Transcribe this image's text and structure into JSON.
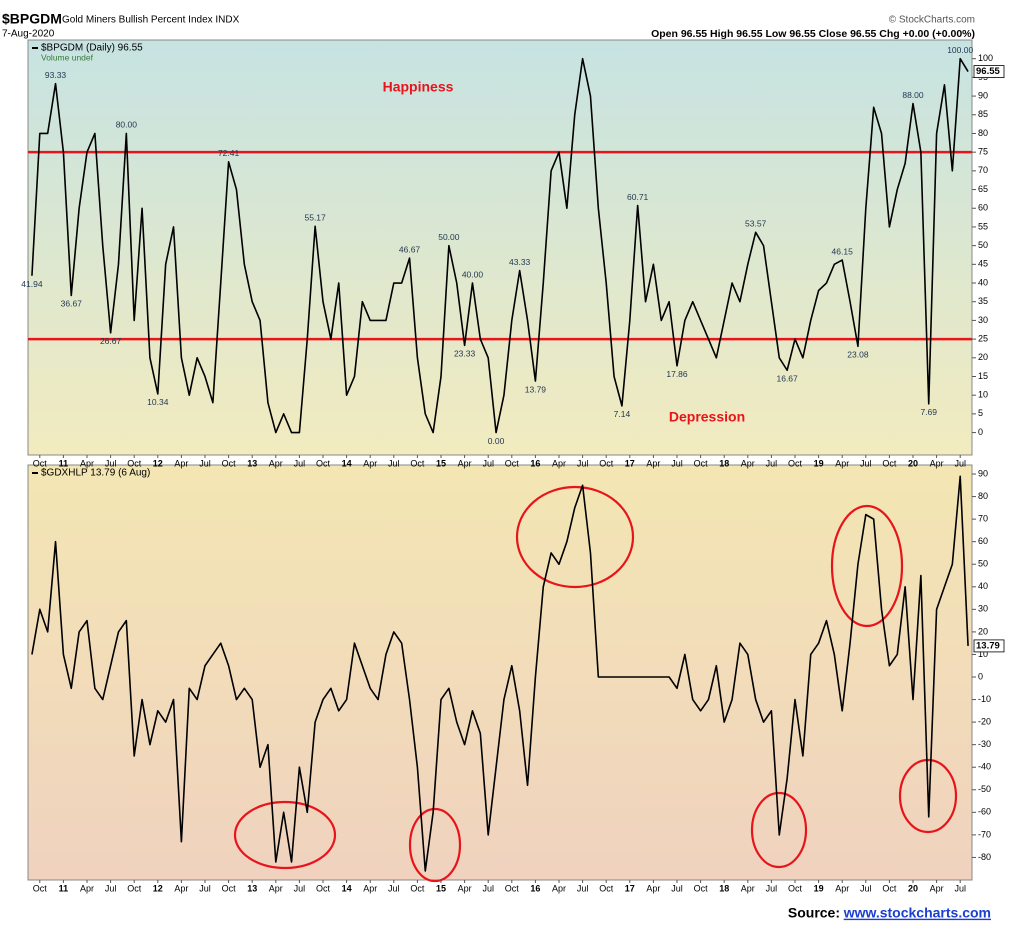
{
  "header": {
    "symbol": "$BPGDM",
    "name": "Gold Miners Bullish Percent Index INDX",
    "date": "7-Aug-2020",
    "credit": "© StockCharts.com",
    "quote": "Open 96.55  High 96.55  Low 96.55  Close 96.55  Chg +0.00 (+0.00%)"
  },
  "chart_data": [
    {
      "type": "line",
      "legend": "$BPGDM (Daily) 96.55",
      "legend_sub": "Volume undef",
      "color": "#000000",
      "annotations": [
        "Happiness",
        "Depression"
      ],
      "hlines": [
        {
          "value": 75,
          "color": "#e8141c"
        },
        {
          "value": 25,
          "color": "#e8141c"
        }
      ],
      "last_value_label": "96.55",
      "categories": [
        null,
        "Oct",
        null,
        null,
        "11",
        null,
        null,
        "Apr",
        null,
        null,
        "Jul",
        null,
        null,
        "Oct",
        null,
        null,
        "12",
        null,
        null,
        "Apr",
        null,
        null,
        "Jul",
        null,
        null,
        "Oct",
        null,
        null,
        "13",
        null,
        null,
        "Apr",
        null,
        null,
        "Jul",
        null,
        null,
        "Oct",
        null,
        null,
        "14",
        null,
        null,
        "Apr",
        null,
        null,
        "Jul",
        null,
        null,
        "Oct",
        null,
        null,
        "15",
        null,
        null,
        "Apr",
        null,
        null,
        "Jul",
        null,
        null,
        "Oct",
        null,
        null,
        "16",
        null,
        null,
        "Apr",
        null,
        null,
        "Jul",
        null,
        null,
        "Oct",
        null,
        null,
        "17",
        null,
        null,
        "Apr",
        null,
        null,
        "Jul",
        null,
        null,
        "Oct",
        null,
        null,
        "18",
        null,
        null,
        "Apr",
        null,
        null,
        "Jul",
        null,
        null,
        "Oct",
        null,
        null,
        "19",
        null,
        null,
        "Apr",
        null,
        null,
        "Jul",
        null,
        null,
        "Oct",
        null,
        null,
        "20",
        null,
        null,
        "Apr",
        null,
        null,
        "Jul",
        null
      ],
      "values": [
        41.94,
        80,
        80,
        93.33,
        75,
        36.67,
        60,
        75,
        80,
        50,
        26.67,
        45,
        80,
        30,
        60,
        20,
        10.34,
        45,
        55,
        20,
        10,
        20,
        15,
        8,
        40,
        72.41,
        65,
        45,
        35,
        30,
        8,
        0,
        5,
        0,
        0,
        25,
        55.17,
        35,
        25,
        40,
        10,
        15,
        35,
        30,
        30,
        30,
        40,
        40,
        46.67,
        20,
        5,
        0,
        15,
        50,
        40,
        23.33,
        40,
        25,
        20,
        0,
        10,
        30,
        43.33,
        30,
        13.79,
        40,
        70,
        75,
        60,
        85,
        100,
        90,
        60,
        40,
        15,
        7.14,
        30,
        60.71,
        35,
        45,
        30,
        35,
        17.86,
        30,
        35,
        30,
        25,
        20,
        30,
        40,
        35,
        45,
        53.57,
        50,
        35,
        20,
        16.67,
        25,
        20,
        30,
        38,
        40,
        45,
        46.15,
        35,
        23.08,
        60,
        87,
        80,
        55,
        65,
        72,
        88,
        75,
        7.69,
        80,
        93,
        70,
        100,
        96.55
      ],
      "value_labels": [
        "41.94",
        null,
        null,
        "93.33",
        null,
        "36.67",
        null,
        null,
        null,
        null,
        "26.67",
        null,
        "80.00",
        null,
        null,
        null,
        "10.34",
        null,
        null,
        null,
        null,
        null,
        null,
        null,
        null,
        "72.41",
        null,
        null,
        null,
        null,
        null,
        null,
        null,
        null,
        null,
        null,
        "55.17",
        null,
        null,
        null,
        null,
        null,
        null,
        null,
        null,
        null,
        null,
        null,
        "46.67",
        null,
        null,
        null,
        null,
        "50.00",
        null,
        "23.33",
        "40.00",
        null,
        null,
        "0.00",
        null,
        null,
        "43.33",
        null,
        "13.79",
        null,
        null,
        null,
        null,
        null,
        null,
        null,
        null,
        null,
        null,
        "7.14",
        null,
        "60.71",
        null,
        null,
        null,
        null,
        "17.86",
        null,
        null,
        null,
        null,
        null,
        null,
        null,
        null,
        null,
        "53.57",
        null,
        null,
        null,
        "16.67",
        null,
        null,
        null,
        null,
        null,
        null,
        "46.15",
        null,
        "23.08",
        null,
        null,
        null,
        null,
        null,
        null,
        "88.00",
        null,
        "7.69",
        null,
        null,
        null,
        "100.00",
        null
      ],
      "ylim": [
        -6,
        105
      ],
      "yticks": [
        0,
        5,
        10,
        15,
        20,
        25,
        30,
        35,
        40,
        45,
        50,
        55,
        60,
        65,
        70,
        75,
        80,
        85,
        90,
        95,
        100
      ],
      "grid": false
    },
    {
      "type": "line",
      "legend": "$GDXHLP 13.79 (6 Aug)",
      "color": "#000000",
      "last_value_label": "13.79",
      "categories": [
        null,
        "Oct",
        null,
        null,
        "11",
        null,
        null,
        "Apr",
        null,
        null,
        "Jul",
        null,
        null,
        "Oct",
        null,
        null,
        "12",
        null,
        null,
        "Apr",
        null,
        null,
        "Jul",
        null,
        null,
        "Oct",
        null,
        null,
        "13",
        null,
        null,
        "Apr",
        null,
        null,
        "Jul",
        null,
        null,
        "Oct",
        null,
        null,
        "14",
        null,
        null,
        "Apr",
        null,
        null,
        "Jul",
        null,
        null,
        "Oct",
        null,
        null,
        "15",
        null,
        null,
        "Apr",
        null,
        null,
        "Jul",
        null,
        null,
        "Oct",
        null,
        null,
        "16",
        null,
        null,
        "Apr",
        null,
        null,
        "Jul",
        null,
        null,
        "Oct",
        null,
        null,
        "17",
        null,
        null,
        "Apr",
        null,
        null,
        "Jul",
        null,
        null,
        "Oct",
        null,
        null,
        "18",
        null,
        null,
        "Apr",
        null,
        null,
        "Jul",
        null,
        null,
        "Oct",
        null,
        null,
        "19",
        null,
        null,
        "Apr",
        null,
        null,
        "Jul",
        null,
        null,
        "Oct",
        null,
        null,
        "20",
        null,
        null,
        "Apr",
        null,
        null,
        "Jul",
        null
      ],
      "values": [
        10,
        30,
        20,
        60,
        10,
        -5,
        20,
        25,
        -5,
        -10,
        5,
        20,
        25,
        -35,
        -10,
        -30,
        -15,
        -20,
        -10,
        -73,
        -5,
        -10,
        5,
        10,
        15,
        5,
        -10,
        -5,
        -10,
        -40,
        -30,
        -82,
        -60,
        -82,
        -40,
        -60,
        -20,
        -10,
        -5,
        -15,
        -10,
        15,
        5,
        -5,
        -10,
        10,
        20,
        15,
        -10,
        -40,
        -86,
        -60,
        -10,
        -5,
        -20,
        -30,
        -15,
        -25,
        -70,
        -40,
        -10,
        5,
        -15,
        -48,
        0,
        40,
        55,
        50,
        60,
        75,
        85,
        55,
        0,
        0,
        0,
        0,
        0,
        0,
        0,
        0,
        0,
        0,
        -5,
        10,
        -10,
        -15,
        -10,
        5,
        -20,
        -10,
        15,
        10,
        -10,
        -20,
        -15,
        -70,
        -45,
        -10,
        -35,
        10,
        15,
        25,
        10,
        -15,
        15,
        50,
        72,
        70,
        30,
        5,
        10,
        40,
        -10,
        45,
        -62,
        30,
        40,
        50,
        89,
        13.79
      ],
      "ylim": [
        -90,
        94
      ],
      "yticks": [
        -80,
        -70,
        -60,
        -50,
        -40,
        -30,
        -20,
        -10,
        0,
        10,
        20,
        30,
        40,
        50,
        60,
        70,
        80,
        90
      ],
      "grid": false
    }
  ],
  "source": {
    "label": "Source:",
    "link": "www.stockcharts.com"
  }
}
